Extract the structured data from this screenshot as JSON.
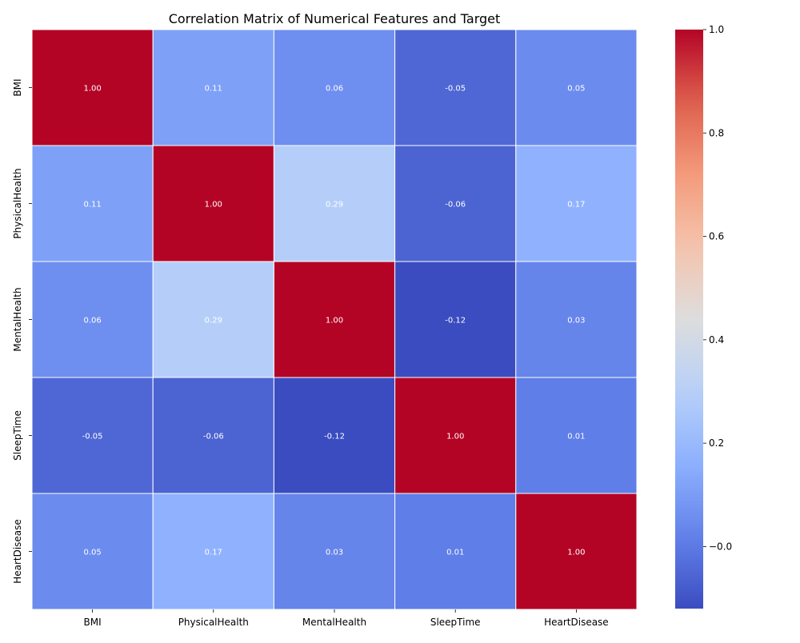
{
  "chart_data": {
    "type": "heatmap",
    "title": "Correlation Matrix of Numerical Features and Target",
    "x_categories": [
      "BMI",
      "PhysicalHealth",
      "MentalHealth",
      "SleepTime",
      "HeartDisease"
    ],
    "y_categories": [
      "BMI",
      "PhysicalHealth",
      "MentalHealth",
      "SleepTime",
      "HeartDisease"
    ],
    "values": [
      [
        1.0,
        0.11,
        0.06,
        -0.05,
        0.05
      ],
      [
        0.11,
        1.0,
        0.29,
        -0.06,
        0.17
      ],
      [
        0.06,
        0.29,
        1.0,
        -0.12,
        0.03
      ],
      [
        -0.05,
        -0.06,
        -0.12,
        1.0,
        0.01
      ],
      [
        0.05,
        0.17,
        0.03,
        0.01,
        1.0
      ]
    ],
    "cell_labels": [
      [
        "1.00",
        "0.11",
        "0.06",
        "-0.05",
        "0.05"
      ],
      [
        "0.11",
        "1.00",
        "0.29",
        "-0.06",
        "0.17"
      ],
      [
        "0.06",
        "0.29",
        "1.00",
        "-0.12",
        "0.03"
      ],
      [
        "-0.05",
        "-0.06",
        "-0.12",
        "1.00",
        "0.01"
      ],
      [
        "0.05",
        "0.17",
        "0.03",
        "0.01",
        "1.00"
      ]
    ],
    "colormap": "coolwarm",
    "colormap_range": [
      -0.12,
      1.0
    ],
    "colorbar_ticks": [
      0.0,
      0.2,
      0.4,
      0.6,
      0.8,
      1.0
    ],
    "colorbar_tick_labels": [
      "−0.0",
      "0.2",
      "0.4",
      "0.6",
      "0.8",
      "1.0"
    ],
    "xlabel": "",
    "ylabel": ""
  }
}
